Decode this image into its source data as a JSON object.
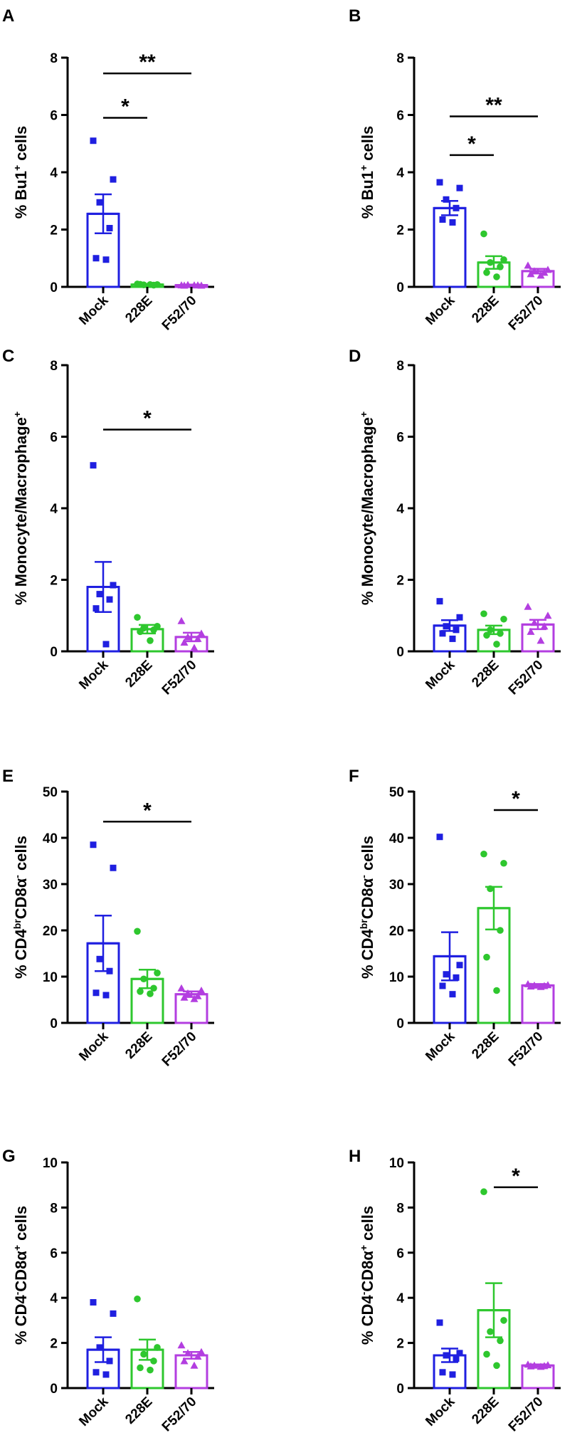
{
  "figure": {
    "panels": [
      "A",
      "B",
      "C",
      "D",
      "E",
      "F",
      "G",
      "H"
    ]
  },
  "colors": {
    "Mock": "#1f1fe0",
    "228E": "#2ec72e",
    "F52/70": "#b33ee0",
    "axis": "#000000"
  },
  "chart_data": [
    {
      "panel": "A",
      "type": "bar",
      "categories": [
        "Mock",
        "228E",
        "F52/70"
      ],
      "ylabel_parts": [
        {
          "t": "% Bu1"
        },
        {
          "t": "+",
          "sup": true
        },
        {
          "t": " cells"
        }
      ],
      "ylim": [
        0,
        8
      ],
      "yticks": [
        0,
        2,
        4,
        6,
        8
      ],
      "means": [
        2.55,
        0.08,
        0.06
      ],
      "sem": [
        0.68,
        0.02,
        0.02
      ],
      "points": [
        [
          5.1,
          3.75,
          2.95,
          2.05,
          1.0,
          0.95
        ],
        [
          0.1,
          0.08,
          0.07,
          0.06,
          0.09,
          0.08
        ],
        [
          0.06,
          0.05,
          0.07,
          0.06,
          0.05,
          0.06
        ]
      ],
      "significance": [
        {
          "from": 0,
          "to": 1,
          "label": "*",
          "y": 5.9
        },
        {
          "from": 0,
          "to": 2,
          "label": "**",
          "y": 7.45
        }
      ]
    },
    {
      "panel": "B",
      "type": "bar",
      "categories": [
        "Mock",
        "228E",
        "F52/70"
      ],
      "ylabel_parts": [
        {
          "t": "% Bu1"
        },
        {
          "t": "+",
          "sup": true
        },
        {
          "t": " cells"
        }
      ],
      "ylim": [
        0,
        8
      ],
      "yticks": [
        0,
        2,
        4,
        6,
        8
      ],
      "means": [
        2.75,
        0.85,
        0.55
      ],
      "sem": [
        0.25,
        0.22,
        0.08
      ],
      "points": [
        [
          3.65,
          3.45,
          3.05,
          2.75,
          2.35,
          2.25
        ],
        [
          1.85,
          0.95,
          0.85,
          0.7,
          0.5,
          0.35
        ],
        [
          0.75,
          0.6,
          0.55,
          0.5,
          0.45,
          0.4
        ]
      ],
      "significance": [
        {
          "from": 0,
          "to": 1,
          "label": "*",
          "y": 4.6
        },
        {
          "from": 0,
          "to": 2,
          "label": "**",
          "y": 5.95
        }
      ]
    },
    {
      "panel": "C",
      "type": "bar",
      "categories": [
        "Mock",
        "228E",
        "F52/70"
      ],
      "ylabel_parts": [
        {
          "t": "% Monocyte/Macrophage"
        },
        {
          "t": "+",
          "sup": true
        }
      ],
      "ylim": [
        0,
        8
      ],
      "yticks": [
        0,
        2,
        4,
        6,
        8
      ],
      "means": [
        1.8,
        0.62,
        0.4
      ],
      "sem": [
        0.7,
        0.12,
        0.12
      ],
      "points": [
        [
          5.2,
          1.85,
          1.6,
          1.45,
          1.2,
          0.2
        ],
        [
          0.95,
          0.7,
          0.65,
          0.6,
          0.55,
          0.3
        ],
        [
          0.85,
          0.5,
          0.4,
          0.35,
          0.25,
          0.1
        ]
      ],
      "significance": [
        {
          "from": 0,
          "to": 2,
          "label": "*",
          "y": 6.2
        }
      ]
    },
    {
      "panel": "D",
      "type": "bar",
      "categories": [
        "Mock",
        "228E",
        "F52/70"
      ],
      "ylabel_parts": [
        {
          "t": "% Monocyte/Macrophage"
        },
        {
          "t": "+",
          "sup": true
        }
      ],
      "ylim": [
        0,
        8
      ],
      "yticks": [
        0,
        2,
        4,
        6,
        8
      ],
      "means": [
        0.72,
        0.6,
        0.75
      ],
      "sem": [
        0.15,
        0.12,
        0.13
      ],
      "points": [
        [
          1.4,
          0.95,
          0.7,
          0.6,
          0.5,
          0.35
        ],
        [
          1.05,
          0.9,
          0.6,
          0.5,
          0.45,
          0.2
        ],
        [
          1.25,
          1.0,
          0.8,
          0.7,
          0.55,
          0.3
        ]
      ],
      "significance": []
    },
    {
      "panel": "E",
      "type": "bar",
      "categories": [
        "Mock",
        "228E",
        "F52/70"
      ],
      "ylabel_parts": [
        {
          "t": "% CD4"
        },
        {
          "t": "br",
          "sup": true
        },
        {
          "t": "CD8α"
        },
        {
          "t": "-",
          "sup": true
        },
        {
          "t": " cells"
        }
      ],
      "ylim": [
        0,
        50
      ],
      "yticks": [
        0,
        10,
        20,
        30,
        40,
        50
      ],
      "means": [
        17.2,
        9.5,
        6.2
      ],
      "sem": [
        6.0,
        2.0,
        0.6
      ],
      "points": [
        [
          38.5,
          33.5,
          13.8,
          11.2,
          6.5,
          6.0
        ],
        [
          19.8,
          10.8,
          9.5,
          7.5,
          6.8,
          6.3
        ],
        [
          7.5,
          7.0,
          6.4,
          5.8,
          5.5,
          5.2
        ]
      ],
      "significance": [
        {
          "from": 0,
          "to": 2,
          "label": "*",
          "y": 43.5
        }
      ]
    },
    {
      "panel": "F",
      "type": "bar",
      "categories": [
        "Mock",
        "228E",
        "F52/70"
      ],
      "ylabel_parts": [
        {
          "t": "% CD4"
        },
        {
          "t": "br",
          "sup": true
        },
        {
          "t": "CD8α"
        },
        {
          "t": "-",
          "sup": true
        },
        {
          "t": " cells"
        }
      ],
      "ylim": [
        0,
        50
      ],
      "yticks": [
        0,
        10,
        20,
        30,
        40,
        50
      ],
      "means": [
        14.4,
        24.8,
        8.1
      ],
      "sem": [
        5.2,
        4.6,
        0.3
      ],
      "points": [
        [
          40.2,
          12.5,
          10.5,
          9.8,
          8.0,
          6.2
        ],
        [
          36.5,
          34.5,
          29.0,
          20.0,
          14.2,
          7.0
        ],
        [
          8.4,
          8.2,
          8.1,
          8.0,
          7.9,
          7.8
        ]
      ],
      "significance": [
        {
          "from": 1,
          "to": 2,
          "label": "*",
          "y": 46.0
        }
      ]
    },
    {
      "panel": "G",
      "type": "bar",
      "categories": [
        "Mock",
        "228E",
        "F52/70"
      ],
      "ylabel_parts": [
        {
          "t": "% CD4"
        },
        {
          "t": "-",
          "sup": true
        },
        {
          "t": "CD8α"
        },
        {
          "t": "+",
          "sup": true
        },
        {
          "t": " cells"
        }
      ],
      "ylim": [
        0,
        10
      ],
      "yticks": [
        0,
        2,
        4,
        6,
        8,
        10
      ],
      "means": [
        1.7,
        1.7,
        1.45
      ],
      "sem": [
        0.55,
        0.45,
        0.15
      ],
      "points": [
        [
          3.8,
          3.3,
          1.8,
          1.2,
          0.7,
          0.6
        ],
        [
          3.95,
          1.8,
          1.5,
          1.2,
          0.9,
          0.8
        ],
        [
          1.9,
          1.6,
          1.55,
          1.4,
          1.2,
          1.0
        ]
      ],
      "significance": []
    },
    {
      "panel": "H",
      "type": "bar",
      "categories": [
        "Mock",
        "228E",
        "F52/70"
      ],
      "ylabel_parts": [
        {
          "t": "% CD4"
        },
        {
          "t": "-",
          "sup": true
        },
        {
          "t": "CD8α"
        },
        {
          "t": "+",
          "sup": true
        },
        {
          "t": " cells"
        }
      ],
      "ylim": [
        0,
        10
      ],
      "yticks": [
        0,
        2,
        4,
        6,
        8,
        10
      ],
      "means": [
        1.45,
        3.45,
        1.0
      ],
      "sem": [
        0.3,
        1.2,
        0.05
      ],
      "points": [
        [
          2.9,
          1.55,
          1.45,
          1.3,
          0.7,
          0.6
        ],
        [
          8.7,
          3.0,
          2.5,
          2.1,
          1.5,
          1.0
        ],
        [
          1.05,
          1.02,
          1.0,
          0.98,
          0.97,
          0.95
        ]
      ],
      "significance": [
        {
          "from": 1,
          "to": 2,
          "label": "*",
          "y": 8.9
        }
      ]
    }
  ]
}
